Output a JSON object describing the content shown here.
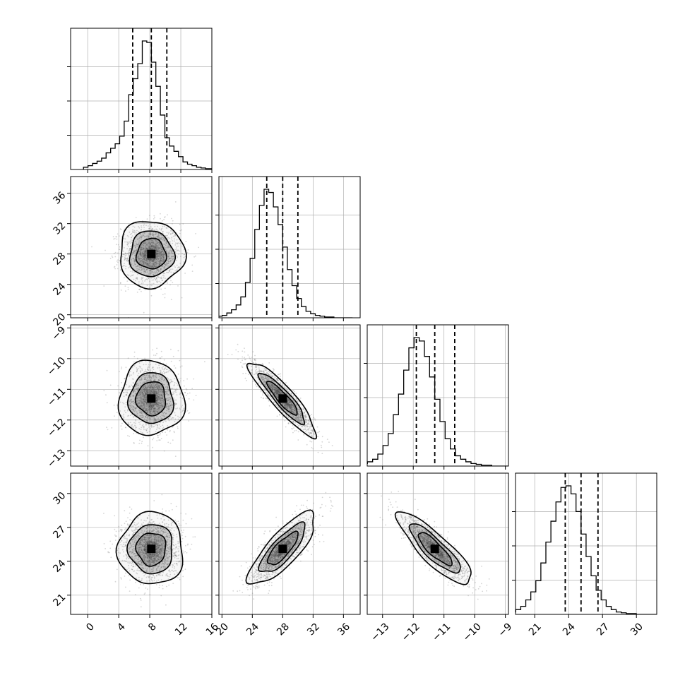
{
  "chart_data": {
    "type": "corner",
    "grid": true,
    "colors": {
      "axis": "#000000",
      "grid": "#b0b0b0",
      "scatter": "#888888",
      "contour_fill": "#000000"
    },
    "parameters": [
      {
        "ticks": [
          0,
          4,
          8,
          12,
          16
        ],
        "tick_labels": [
          "0",
          "4",
          "8",
          "12",
          "16"
        ],
        "range": [
          -2.2,
          16.0
        ],
        "mean": 8.2,
        "sigma": 1.9,
        "quantiles": [
          5.8,
          8.2,
          10.2
        ],
        "hist_counts": [
          3,
          5,
          8,
          11,
          15,
          22,
          28,
          34,
          44,
          64,
          99,
          120,
          140,
          170,
          168,
          142,
          110,
          72,
          42,
          31,
          24,
          17,
          10,
          7,
          5,
          3,
          2,
          1,
          1,
          0
        ]
      },
      {
        "ticks": [
          20,
          24,
          28,
          32,
          36
        ],
        "tick_labels": [
          "20",
          "24",
          "28",
          "32",
          "36"
        ],
        "range": [
          19.6,
          38.2
        ],
        "mean": 28.0,
        "sigma": 2.0,
        "quantiles": [
          25.9,
          28.0,
          30.0
        ],
        "hist_counts": [
          1,
          2,
          3,
          6,
          10,
          16,
          26,
          44,
          74,
          110,
          140,
          160,
          156,
          138,
          116,
          88,
          60,
          40,
          24,
          14,
          8,
          5,
          3,
          2,
          1,
          1,
          0,
          0,
          0,
          0
        ]
      },
      {
        "ticks": [
          -13,
          -12,
          -11,
          -10,
          -9
        ],
        "tick_labels": [
          "−13",
          "−12",
          "−11",
          "−10",
          "−9"
        ],
        "range": [
          -13.5,
          -8.9
        ],
        "mean": -11.3,
        "sigma": 0.55,
        "quantiles": [
          -11.9,
          -11.3,
          -10.65
        ],
        "hist_counts": [
          2,
          3,
          5,
          8,
          14,
          24,
          38,
          60,
          84,
          112,
          138,
          150,
          146,
          128,
          104,
          78,
          52,
          32,
          20,
          12,
          8,
          5,
          3,
          2,
          1,
          1,
          0,
          0,
          0,
          0
        ]
      },
      {
        "ticks": [
          21,
          24,
          27,
          30
        ],
        "tick_labels": [
          "21",
          "24",
          "27",
          "30"
        ],
        "range": [
          19.3,
          31.8
        ],
        "mean": 25.1,
        "sigma": 1.45,
        "quantiles": [
          23.7,
          25.1,
          26.6
        ],
        "hist_counts": [
          1,
          3,
          6,
          10,
          18,
          28,
          42,
          64,
          90,
          116,
          140,
          158,
          160,
          150,
          128,
          100,
          72,
          48,
          30,
          18,
          10,
          6,
          3,
          2,
          1,
          1,
          0,
          0,
          0,
          0
        ]
      }
    ],
    "correlations": {
      "1-0": 0.0,
      "2-0": 0.0,
      "2-1": -0.9,
      "3-0": 0.0,
      "3-1": 0.8,
      "3-2": -0.85
    }
  }
}
